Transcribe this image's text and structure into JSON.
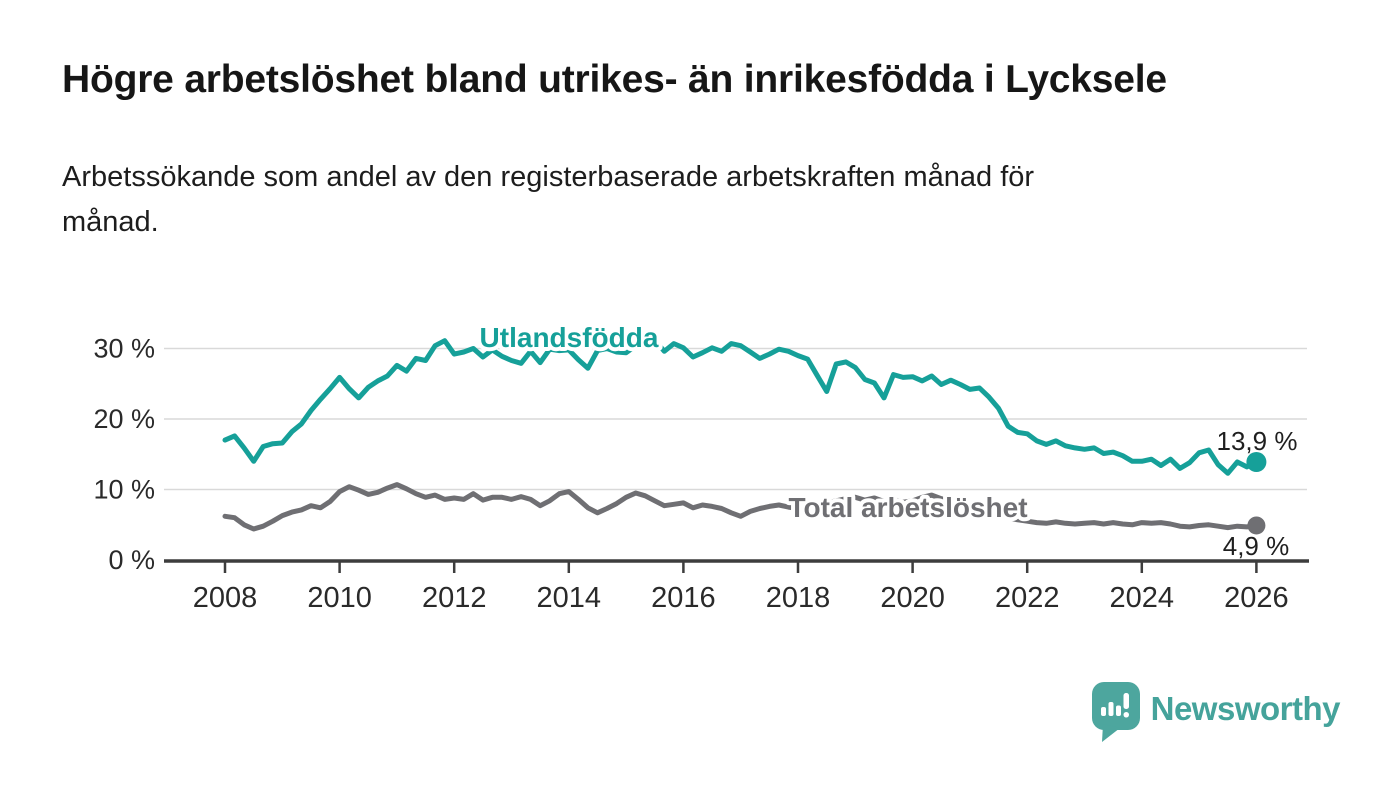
{
  "header": {
    "title": "Högre arbetslöshet bland utrikes- än inrikesfödda i Lycksele",
    "subtitle_lines": {
      "0": "Arbetssökande som andel av den registerbaserade arbetskraften månad för",
      "1": "månad."
    }
  },
  "chart_data": {
    "type": "line",
    "title": "Högre arbetslöshet bland utrikes- än inrikesfödda i Lycksele",
    "subtitle": "Arbetssökande som andel av den registerbaserade arbetskraften månad för månad.",
    "unit": "%",
    "grid": "horizontal",
    "xlim": [
      2007,
      2026.9
    ],
    "ylim": [
      0,
      33
    ],
    "x_ticks": [
      2008,
      2010,
      2012,
      2014,
      2016,
      2018,
      2020,
      2022,
      2024,
      2026
    ],
    "y_ticks": [
      {
        "value": 0,
        "label": "0 %"
      },
      {
        "value": 10,
        "label": "10 %"
      },
      {
        "value": 20,
        "label": "20 %"
      },
      {
        "value": 30,
        "label": "30 %"
      }
    ],
    "x_start": 2008.0,
    "x_step": 0.1666667,
    "series": [
      {
        "name": "Utlandsfödda",
        "label": "Utlandsfödda",
        "color": "#16a099",
        "end_label": "13,9 %",
        "end_value": 13.9,
        "values": [
          17.0,
          17.6,
          15.9,
          14.0,
          16.1,
          16.5,
          16.6,
          18.2,
          19.3,
          21.2,
          22.8,
          24.3,
          25.9,
          24.3,
          23.0,
          24.5,
          25.4,
          26.1,
          27.6,
          26.8,
          28.6,
          28.3,
          30.4,
          31.1,
          29.2,
          29.5,
          30.0,
          28.8,
          29.8,
          28.9,
          28.3,
          27.9,
          29.6,
          28.0,
          29.9,
          29.7,
          29.8,
          28.4,
          27.2,
          29.7,
          30.0,
          29.5,
          29.4,
          30.4,
          30.7,
          31.2,
          29.6,
          30.7,
          30.1,
          28.8,
          29.4,
          30.1,
          29.6,
          30.7,
          30.4,
          29.5,
          28.6,
          29.2,
          29.9,
          29.6,
          29.0,
          28.5,
          26.2,
          23.9,
          27.8,
          28.1,
          27.3,
          25.6,
          25.1,
          23.0,
          26.3,
          25.9,
          26.0,
          25.4,
          26.1,
          24.9,
          25.5,
          24.9,
          24.2,
          24.4,
          23.1,
          21.5,
          19.0,
          18.1,
          17.9,
          16.9,
          16.4,
          16.9,
          16.2,
          15.9,
          15.7,
          15.9,
          15.1,
          15.3,
          14.8,
          14.0,
          14.0,
          14.3,
          13.4,
          14.3,
          13.0,
          13.8,
          15.2,
          15.6,
          13.5,
          12.3,
          13.9,
          13.2,
          13.9
        ]
      },
      {
        "name": "Total arbetslöshet",
        "label": "Total arbetslöshet",
        "color": "#6f6f73",
        "end_label": "4,9 %",
        "end_value": 4.9,
        "values": [
          6.2,
          6.0,
          5.0,
          4.4,
          4.8,
          5.5,
          6.3,
          6.8,
          7.1,
          7.7,
          7.4,
          8.3,
          9.7,
          10.4,
          9.9,
          9.3,
          9.6,
          10.2,
          10.7,
          10.1,
          9.4,
          8.9,
          9.2,
          8.6,
          8.8,
          8.6,
          9.4,
          8.5,
          8.9,
          8.9,
          8.6,
          9.0,
          8.6,
          7.7,
          8.4,
          9.4,
          9.7,
          8.6,
          7.4,
          6.7,
          7.3,
          8.0,
          8.9,
          9.5,
          9.1,
          8.4,
          7.7,
          7.9,
          8.1,
          7.4,
          7.8,
          7.6,
          7.3,
          6.7,
          6.2,
          6.9,
          7.3,
          7.6,
          7.8,
          7.5,
          7.3,
          7.0,
          7.6,
          8.1,
          8.4,
          8.7,
          8.9,
          8.5,
          8.8,
          8.3,
          8.6,
          8.2,
          8.4,
          8.9,
          9.2,
          8.7,
          8.3,
          7.9,
          7.5,
          7.2,
          6.8,
          6.4,
          6.0,
          5.7,
          5.5,
          5.3,
          5.2,
          5.4,
          5.2,
          5.1,
          5.2,
          5.3,
          5.1,
          5.3,
          5.1,
          5.0,
          5.3,
          5.2,
          5.3,
          5.1,
          4.8,
          4.7,
          4.9,
          5.0,
          4.8,
          4.6,
          4.8,
          4.7,
          4.9
        ]
      }
    ],
    "legend_position": "inline-labels"
  },
  "branding": {
    "name": "Newsworthy",
    "color": "#45a39b"
  }
}
